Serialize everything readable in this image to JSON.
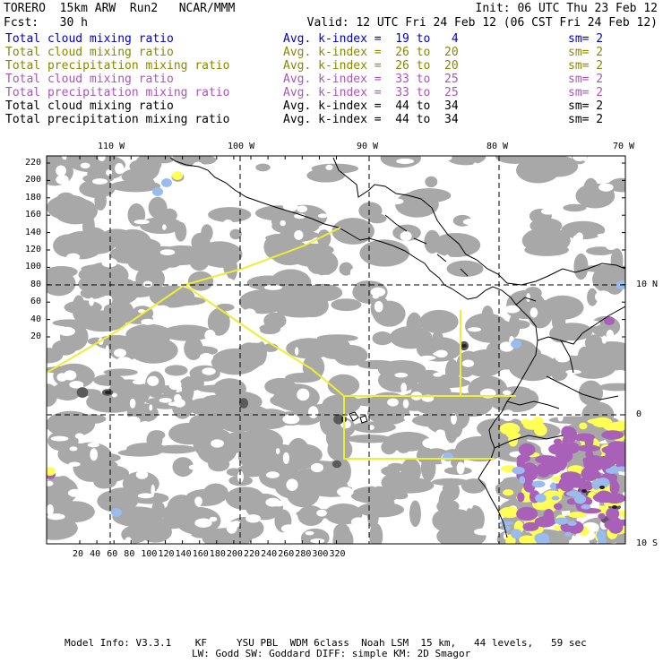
{
  "header": {
    "model": "TORERO",
    "resolution": "15km ARW",
    "run": "Run2",
    "source": "NCAR/MMM",
    "init": "Init: 06 UTC Thu 23 Feb 12",
    "fcst_label": "Fcst:",
    "fcst_hours": "30 h",
    "valid": "Valid: 12 UTC Fri 24 Feb 12 (06 CST Fri 24 Feb 12)"
  },
  "legend": [
    {
      "field": "Total cloud mixing ratio",
      "range": "Avg. k-index =  19 to   4",
      "sm": "sm= 2",
      "color": "#0000cc"
    },
    {
      "field": "Total cloud mixing ratio",
      "range": "Avg. k-index =  26 to  20",
      "sm": "sm= 2",
      "color": "#888800"
    },
    {
      "field": "Total precipitation mixing ratio",
      "range": "Avg. k-index =  26 to  20",
      "sm": "sm= 2",
      "color": "#888800"
    },
    {
      "field": "Total cloud mixing ratio",
      "range": "Avg. k-index =  33 to  25",
      "sm": "sm= 2",
      "color": "#aa55bb"
    },
    {
      "field": "Total precipitation mixing ratio",
      "range": "Avg. k-index =  33 to  25",
      "sm": "sm= 2",
      "color": "#aa55bb"
    },
    {
      "field": "Total cloud mixing ratio",
      "range": "Avg. k-index =  44 to  34",
      "sm": "sm= 2",
      "color": "#000000"
    },
    {
      "field": "Total precipitation mixing ratio",
      "range": "Avg. k-index =  44 to  34",
      "sm": "sm= 2",
      "color": "#000000"
    }
  ],
  "axes": {
    "top_lon": [
      "110 W",
      "100 W",
      "90 W",
      "80 W",
      "70 W"
    ],
    "right_lat": [
      "10 N",
      "0",
      "10 S"
    ],
    "left_y": [
      "220",
      "200",
      "180",
      "160",
      "140",
      "120",
      "100",
      "80",
      "60",
      "40",
      "20"
    ],
    "bottom_x": [
      "20",
      "40",
      "60",
      "80",
      "100",
      "120",
      "140",
      "160",
      "180",
      "200",
      "220",
      "240",
      "260",
      "280",
      "300",
      "320"
    ]
  },
  "footer": {
    "line1": "Model Info: V3.3.1    KF     YSU PBL  WDM 6class  Noah LSM  15 km,   44 levels,   59 sec",
    "line2": "LW: Godd SW: Goddard DIFF: simple KM: 2D Smagor"
  },
  "colors": {
    "cloud_gray": "#a8a8a8",
    "dark_gray": "#5a5a5a",
    "yellow": "#ffff55",
    "purple": "#a860b8",
    "blue": "#99bbee",
    "domain_line": "#eeee33"
  }
}
